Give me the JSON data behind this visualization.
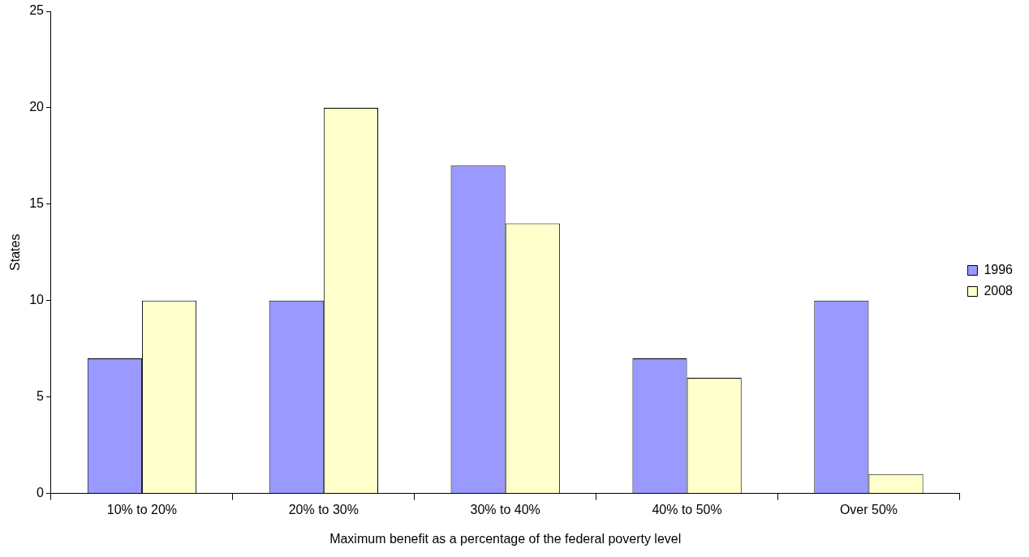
{
  "chart_data": {
    "type": "bar",
    "xlabel": "Maximum benefit as a percentage of the federal poverty level",
    "ylabel": "States",
    "categories": [
      "10% to 20%",
      "20% to 30%",
      "30% to 40%",
      "40% to 50%",
      "Over 50%"
    ],
    "series": [
      {
        "name": "1996",
        "color": "#9999ff",
        "values": [
          7,
          10,
          17,
          7,
          10
        ]
      },
      {
        "name": "2008",
        "color": "#ffffcc",
        "values": [
          10,
          20,
          14,
          6,
          1
        ]
      }
    ],
    "ylim": [
      0,
      25
    ],
    "yticks": [
      0,
      5,
      10,
      15,
      20,
      25
    ],
    "legend": "right"
  }
}
